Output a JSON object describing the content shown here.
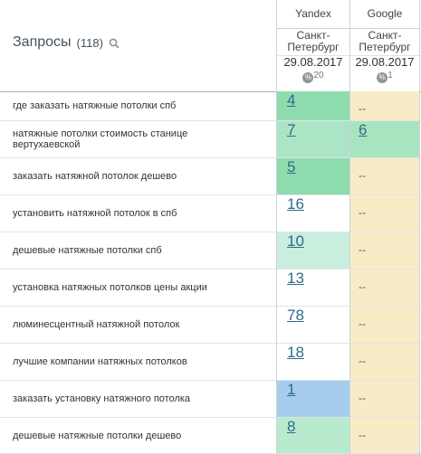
{
  "header": {
    "title": "Запросы",
    "count": "(118)",
    "engines": [
      {
        "name": "Yandex",
        "city": [
          "Санкт-",
          "Петербург"
        ],
        "date": "29.08.2017",
        "percent": "20"
      },
      {
        "name": "Google",
        "city": [
          "Санкт-",
          "Петербург"
        ],
        "date": "29.08.2017",
        "percent": "1"
      }
    ]
  },
  "colors": {
    "yandex_top5": "#8fdcaf",
    "yandex_top10": "#c9eedd",
    "yandex_first": "#a7cdee",
    "google_bg": "#f8ecc6",
    "google_top10": "#a9e4c0"
  },
  "rows": [
    {
      "query": "где заказать натяжные потолки спб",
      "yandex": "4",
      "google": "--",
      "ybg": "#8fdcaf",
      "gbg": "#f8ecc6"
    },
    {
      "query": "натяжные потолки стоимость станице вертухаевской",
      "yandex": "7",
      "google": "6",
      "ybg": "#abe5c5",
      "gbg": "#a9e4c0"
    },
    {
      "query": "заказать натяжной потолок дешево",
      "yandex": "5",
      "google": "--",
      "ybg": "#8fdcaf",
      "gbg": "#f8ecc6"
    },
    {
      "query": "установить натяжной потолок в спб",
      "yandex": "16",
      "google": "--",
      "ybg": "#ffffff",
      "gbg": "#f8ecc6"
    },
    {
      "query": "дешевые натяжные потолки спб",
      "yandex": "10",
      "google": "--",
      "ybg": "#c9eedd",
      "gbg": "#f8ecc6"
    },
    {
      "query": "установка натяжных потолков цены акции",
      "yandex": "13",
      "google": "--",
      "ybg": "#ffffff",
      "gbg": "#f8ecc6"
    },
    {
      "query": "люминесцентный натяжной потолок",
      "yandex": "78",
      "google": "--",
      "ybg": "#ffffff",
      "gbg": "#f8ecc6"
    },
    {
      "query": "лучшие компании натяжных потолков",
      "yandex": "18",
      "google": "--",
      "ybg": "#ffffff",
      "gbg": "#f8ecc6"
    },
    {
      "query": "заказать установку натяжного потолка",
      "yandex": "1",
      "google": "--",
      "ybg": "#a7cdee",
      "gbg": "#f8ecc6"
    },
    {
      "query": "дешевые натяжные потолки дешево",
      "yandex": "8",
      "google": "--",
      "ybg": "#b8ebcd",
      "gbg": "#f8ecc6"
    }
  ]
}
